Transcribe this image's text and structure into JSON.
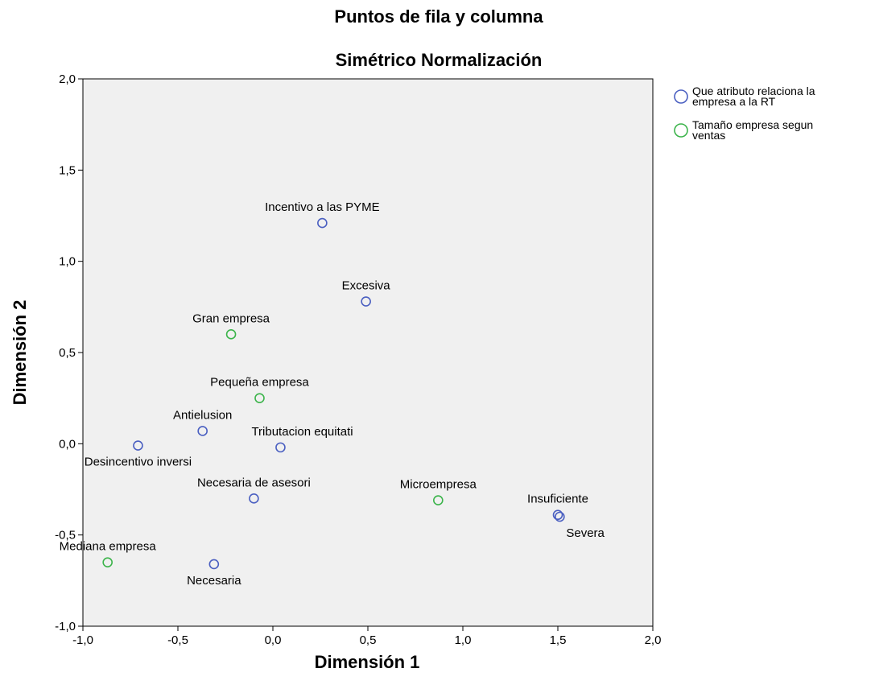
{
  "chart_data": {
    "type": "scatter",
    "title": "Puntos de fila y columna",
    "subtitle": "Simétrico Normalización",
    "xlabel": "Dimensión 1",
    "ylabel": "Dimensión 2",
    "xlim": [
      -1.0,
      2.0
    ],
    "ylim": [
      -1.0,
      2.0
    ],
    "xticks": [
      -1.0,
      -0.5,
      0.0,
      0.5,
      1.0,
      1.5,
      2.0
    ],
    "yticks": [
      -1.0,
      -0.5,
      0.0,
      0.5,
      1.0,
      1.5,
      2.0
    ],
    "xtick_labels": [
      "-1,0",
      "-0,5",
      "0,0",
      "0,5",
      "1,0",
      "1,5",
      "2,0"
    ],
    "ytick_labels": [
      "-1,0",
      "-0,5",
      "0,0",
      "0,5",
      "1,0",
      "1,5",
      "2,0"
    ],
    "grid": false,
    "plot_background": "#f0f0f0",
    "legend_position": "right",
    "series": [
      {
        "name": "Que atributo relaciona la empresa a la RT",
        "legend_lines": [
          "Que atributo relaciona la",
          "empresa a la RT"
        ],
        "color": "#4a5fc1",
        "points": [
          {
            "label": "Incentivo a las PYME",
            "x": 0.26,
            "y": 1.21,
            "label_pos": "above"
          },
          {
            "label": "Excesiva",
            "x": 0.49,
            "y": 0.78,
            "label_pos": "above"
          },
          {
            "label": "Antielusion",
            "x": -0.37,
            "y": 0.07,
            "label_pos": "above"
          },
          {
            "label": "Tributacion equitati",
            "x": 0.04,
            "y": -0.02,
            "label_pos": "above-right"
          },
          {
            "label": "Desincentivo inversi",
            "x": -0.71,
            "y": -0.01,
            "label_pos": "below"
          },
          {
            "label": "Necesaria de asesori",
            "x": -0.1,
            "y": -0.3,
            "label_pos": "above"
          },
          {
            "label": "Necesaria",
            "x": -0.31,
            "y": -0.66,
            "label_pos": "below"
          },
          {
            "label": "Insuficiente",
            "x": 1.5,
            "y": -0.39,
            "label_pos": "above"
          },
          {
            "label": "Severa",
            "x": 1.51,
            "y": -0.4,
            "label_pos": "below-right"
          }
        ]
      },
      {
        "name": "Tamaño empresa segun ventas",
        "legend_lines": [
          "Tamaño empresa segun",
          "ventas"
        ],
        "color": "#3cb44b",
        "points": [
          {
            "label": "Gran empresa",
            "x": -0.22,
            "y": 0.6,
            "label_pos": "above"
          },
          {
            "label": "Pequeña empresa",
            "x": -0.07,
            "y": 0.25,
            "label_pos": "above"
          },
          {
            "label": "Microempresa",
            "x": 0.87,
            "y": -0.31,
            "label_pos": "above"
          },
          {
            "label": "Mediana empresa",
            "x": -0.87,
            "y": -0.65,
            "label_pos": "above"
          }
        ]
      }
    ]
  }
}
